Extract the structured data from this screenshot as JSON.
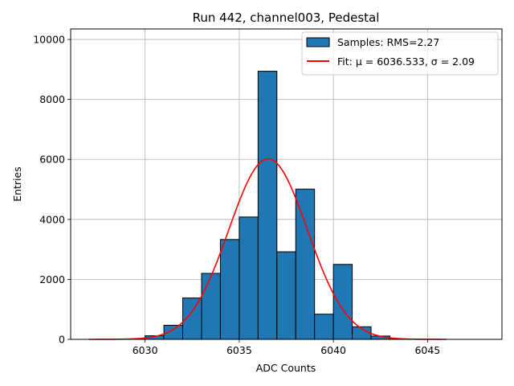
{
  "chart_data": {
    "type": "bar",
    "title": "Run 442, channel003, Pedestal",
    "xlabel": "ADC Counts",
    "ylabel": "Entries",
    "xlim": [
      6026.05,
      6048.95
    ],
    "ylim": [
      0,
      10350
    ],
    "xticks": [
      6030,
      6035,
      6040,
      6045
    ],
    "yticks": [
      0,
      2000,
      4000,
      6000,
      8000,
      10000
    ],
    "grid": true,
    "legend_position": "top-right",
    "bin_width": 1,
    "bins": [
      {
        "x": 6029.5,
        "value": 10
      },
      {
        "x": 6030.5,
        "value": 120
      },
      {
        "x": 6031.5,
        "value": 470
      },
      {
        "x": 6032.5,
        "value": 1380
      },
      {
        "x": 6033.5,
        "value": 2200
      },
      {
        "x": 6034.5,
        "value": 3330
      },
      {
        "x": 6035.5,
        "value": 4080
      },
      {
        "x": 6036.5,
        "value": 8940
      },
      {
        "x": 6037.5,
        "value": 2920
      },
      {
        "x": 6038.5,
        "value": 5010
      },
      {
        "x": 6039.5,
        "value": 840
      },
      {
        "x": 6040.5,
        "value": 2500
      },
      {
        "x": 6041.5,
        "value": 420
      },
      {
        "x": 6042.5,
        "value": 110
      },
      {
        "x": 6043.5,
        "value": 10
      }
    ],
    "fit": {
      "mu": 6036.533,
      "sigma": 2.09,
      "amplitude": 6020,
      "x_range": [
        6027,
        6046
      ]
    },
    "series": [
      {
        "name": "Samples: RMS=2.27",
        "kind": "histogram",
        "color": "#1f77b4"
      },
      {
        "name": "Fit: μ = 6036.533, σ = 2.09",
        "kind": "line",
        "color": "#ff0000"
      }
    ]
  }
}
